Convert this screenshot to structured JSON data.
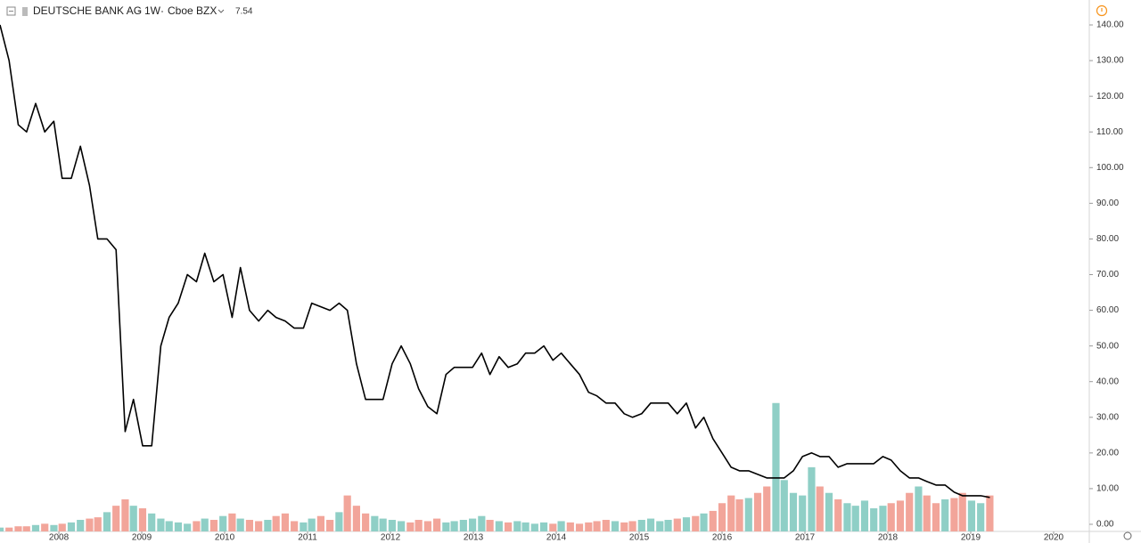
{
  "chart_data": {
    "type": "line",
    "title": "DEUTSCHE BANK AG",
    "interval": "1W",
    "exchange": "Cboe BZX",
    "last": 7.54,
    "x": [
      2007.29,
      2007.4,
      2007.51,
      2007.61,
      2007.72,
      2007.83,
      2007.94,
      2008.04,
      2008.15,
      2008.26,
      2008.37,
      2008.47,
      2008.58,
      2008.69,
      2008.8,
      2008.9,
      2009.01,
      2009.12,
      2009.23,
      2009.33,
      2009.44,
      2009.55,
      2009.66,
      2009.76,
      2009.87,
      2009.98,
      2010.09,
      2010.19,
      2010.3,
      2010.41,
      2010.52,
      2010.62,
      2010.73,
      2010.84,
      2010.95,
      2011.05,
      2011.16,
      2011.27,
      2011.38,
      2011.48,
      2011.59,
      2011.7,
      2011.81,
      2011.91,
      2012.02,
      2012.13,
      2012.24,
      2012.34,
      2012.45,
      2012.56,
      2012.67,
      2012.77,
      2012.88,
      2012.99,
      2013.1,
      2013.2,
      2013.31,
      2013.42,
      2013.53,
      2013.63,
      2013.74,
      2013.85,
      2013.96,
      2014.06,
      2014.17,
      2014.28,
      2014.39,
      2014.49,
      2014.6,
      2014.71,
      2014.82,
      2014.92,
      2015.03,
      2015.14,
      2015.25,
      2015.35,
      2015.46,
      2015.57,
      2015.68,
      2015.78,
      2015.89,
      2016.0,
      2016.11,
      2016.21,
      2016.32,
      2016.43,
      2016.54,
      2016.65,
      2016.75,
      2016.86,
      2016.97,
      2017.08,
      2017.18,
      2017.29,
      2017.4,
      2017.51,
      2017.61,
      2017.72,
      2017.83,
      2017.94,
      2018.04,
      2018.15,
      2018.26,
      2018.37,
      2018.47,
      2018.58,
      2018.69,
      2018.8,
      2018.9,
      2019.01,
      2019.12,
      2019.23
    ],
    "series": [
      {
        "type": "line",
        "color": "#000000",
        "values": [
          140,
          130,
          112,
          110,
          118,
          110,
          113,
          97,
          97,
          106,
          95,
          80,
          80,
          77,
          26,
          35,
          22,
          22,
          50,
          58,
          62,
          70,
          68,
          76,
          68,
          70,
          58,
          72,
          60,
          57,
          60,
          58,
          57,
          55,
          55,
          62,
          61,
          60,
          62,
          60,
          45,
          35,
          35,
          35,
          45,
          50,
          45,
          38,
          33,
          31,
          42,
          44,
          44,
          44,
          48,
          42,
          47,
          44,
          45,
          48,
          48,
          50,
          46,
          48,
          45,
          42,
          37,
          36,
          34,
          34,
          31,
          30,
          31,
          34,
          34,
          34,
          31,
          34,
          27,
          30,
          24,
          20,
          16,
          15,
          15,
          14,
          13,
          13,
          13,
          15,
          19,
          20,
          19,
          19,
          16,
          17,
          17,
          17,
          17,
          19,
          18,
          15,
          13,
          13,
          12,
          11,
          11,
          9,
          8,
          8,
          8,
          7.54
        ]
      },
      {
        "type": "bar",
        "axis": "y2",
        "up_color": "#8fcfc6",
        "down_color": "#f2a59a",
        "values": [
          3,
          3,
          4,
          4,
          5,
          6,
          5,
          6,
          7,
          9,
          10,
          11,
          15,
          20,
          25,
          20,
          18,
          14,
          10,
          8,
          7,
          6,
          8,
          10,
          9,
          12,
          14,
          10,
          9,
          8,
          9,
          12,
          14,
          8,
          7,
          10,
          12,
          9,
          15,
          28,
          20,
          14,
          12,
          10,
          9,
          8,
          7,
          9,
          8,
          10,
          7,
          8,
          9,
          10,
          12,
          9,
          8,
          7,
          8,
          7,
          6,
          7,
          6,
          8,
          7,
          6,
          7,
          8,
          9,
          8,
          7,
          8,
          9,
          10,
          8,
          9,
          10,
          11,
          12,
          14,
          16,
          22,
          28,
          25,
          26,
          30,
          35,
          100,
          40,
          30,
          28,
          50,
          35,
          30,
          25,
          22,
          20,
          24,
          18,
          20,
          22,
          24,
          30,
          35,
          28,
          22,
          25,
          26,
          30,
          24,
          22,
          28
        ]
      }
    ],
    "xlim": [
      2007.29,
      2020.43
    ],
    "xticks": [
      2008,
      2009,
      2010,
      2011,
      2012,
      2013,
      2014,
      2015,
      2016,
      2017,
      2018,
      2019,
      2020
    ],
    "ylim": [
      -2,
      142
    ],
    "yticks": [
      {
        "value": 0,
        "label": "0.00"
      },
      {
        "value": 10,
        "label": "10.00"
      },
      {
        "value": 20,
        "label": "20.00"
      },
      {
        "value": 30,
        "label": "30.00"
      },
      {
        "value": 40,
        "label": "40.00"
      },
      {
        "value": 50,
        "label": "50.00"
      },
      {
        "value": 60,
        "label": "60.00"
      },
      {
        "value": 70,
        "label": "70.00"
      },
      {
        "value": 80,
        "label": "80.00"
      },
      {
        "value": 90,
        "label": "90.00"
      },
      {
        "value": 100,
        "label": "100.00"
      },
      {
        "value": 110,
        "label": "110.00"
      },
      {
        "value": 120,
        "label": "120.00"
      },
      {
        "value": 130,
        "label": "130.00"
      },
      {
        "value": 140,
        "label": "140.00"
      }
    ],
    "y2lim": [
      0,
      400
    ],
    "grid": false
  }
}
